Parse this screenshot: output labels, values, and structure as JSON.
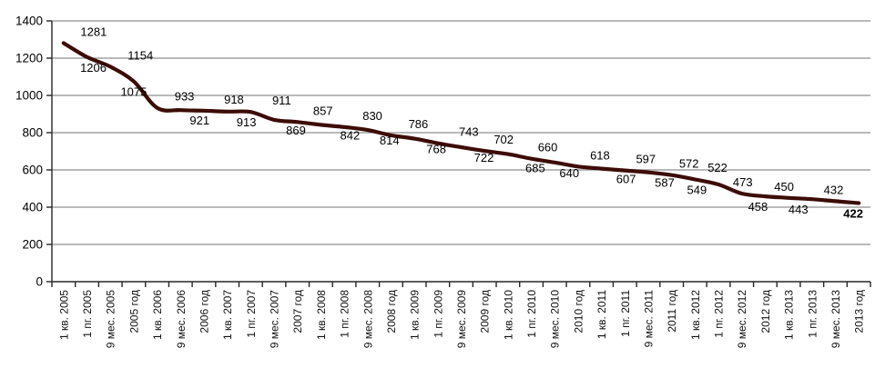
{
  "chart_data": {
    "type": "line",
    "title": "",
    "categories": [
      "1 кв. 2005",
      "1 пг. 2005",
      "9 мес. 2005",
      "2005 год",
      "1 кв. 2006",
      "9 мес. 2006",
      "2006 год",
      "1 кв. 2007",
      "1 пг. 2007",
      "9 мес. 2007",
      "2007 год",
      "1 кв. 2008",
      "1 пг. 2008",
      "9 мес. 2008",
      "2008 год",
      "1 кв. 2009",
      "1 пг. 2009",
      "9 мес. 2009",
      "2009 год",
      "1 кв. 2010",
      "1 пг. 2010",
      "9 мес. 2010",
      "2010 год",
      "1 кв. 2011",
      "1 пг. 2011",
      "9 мес. 2011",
      "2011 год",
      "1 кв. 2012",
      "1 пг. 2012",
      "9 мес. 2012",
      "2012 год",
      "1 кв. 2013",
      "1 пг. 2013",
      "9 мес. 2013",
      "2013 год"
    ],
    "series": [
      {
        "name": "",
        "values": [
          1281,
          1206,
          1154,
          1075,
          933,
          921,
          918,
          913,
          911,
          869,
          857,
          842,
          830,
          814,
          786,
          768,
          743,
          722,
          702,
          685,
          660,
          640,
          618,
          607,
          597,
          587,
          572,
          549,
          522,
          473,
          458,
          450,
          443,
          432,
          422
        ]
      }
    ],
    "xlabel": "",
    "ylabel": "",
    "ylim": [
      0,
      1400
    ],
    "yticks": [
      0,
      200,
      400,
      600,
      800,
      1000,
      1200,
      1400
    ],
    "grid": "horizontal",
    "legend": "none",
    "smoothed_line": true,
    "data_labels_shown": true,
    "label_sides": [
      "above",
      "below",
      "above",
      "below",
      "above",
      "below",
      "above",
      "below",
      "above",
      "below",
      "above",
      "below",
      "above",
      "below",
      "above",
      "below",
      "above",
      "below",
      "above",
      "below",
      "above",
      "below",
      "above",
      "below",
      "above",
      "below",
      "above",
      "below",
      "above",
      "above",
      "below",
      "above",
      "below",
      "above",
      "below"
    ],
    "last_label_bold": true,
    "colors": {
      "line": "#3c0c06",
      "grid": "#8f8f8f",
      "axis": "#262626",
      "text": "#000000",
      "background": "#ffffff"
    }
  }
}
